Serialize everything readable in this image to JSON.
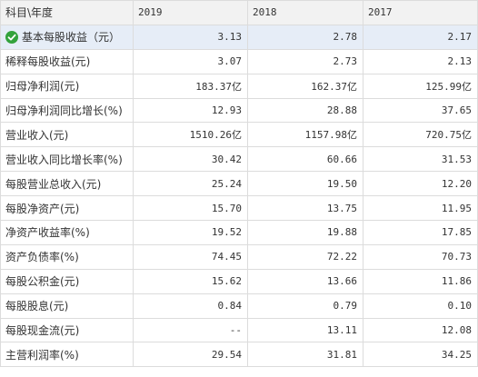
{
  "header": {
    "label": "科目\\年度",
    "years": [
      "2019",
      "2018",
      "2017"
    ]
  },
  "rows": [
    {
      "label": "基本每股收益（元）",
      "values": [
        "3.13",
        "2.78",
        "2.17"
      ],
      "selected": true,
      "icon": "check-circle-icon"
    },
    {
      "label": "稀释每股收益(元)",
      "values": [
        "3.07",
        "2.73",
        "2.13"
      ]
    },
    {
      "label": "归母净利润(元)",
      "values": [
        "183.37亿",
        "162.37亿",
        "125.99亿"
      ]
    },
    {
      "label": "归母净利润同比增长(%)",
      "values": [
        "12.93",
        "28.88",
        "37.65"
      ]
    },
    {
      "label": "营业收入(元)",
      "values": [
        "1510.26亿",
        "1157.98亿",
        "720.75亿"
      ]
    },
    {
      "label": "营业收入同比增长率(%)",
      "values": [
        "30.42",
        "60.66",
        "31.53"
      ]
    },
    {
      "label": "每股营业总收入(元)",
      "values": [
        "25.24",
        "19.50",
        "12.20"
      ]
    },
    {
      "label": "每股净资产(元)",
      "values": [
        "15.70",
        "13.75",
        "11.95"
      ]
    },
    {
      "label": "净资产收益率(%)",
      "values": [
        "19.52",
        "19.88",
        "17.85"
      ]
    },
    {
      "label": "资产负债率(%)",
      "values": [
        "74.45",
        "72.22",
        "70.73"
      ]
    },
    {
      "label": "每股公积金(元)",
      "values": [
        "15.62",
        "13.66",
        "11.86"
      ]
    },
    {
      "label": "每股股息(元)",
      "values": [
        "0.84",
        "0.79",
        "0.10"
      ]
    },
    {
      "label": "每股现金流(元)",
      "values": [
        "--",
        "13.11",
        "12.08"
      ]
    },
    {
      "label": "主营利润率(%)",
      "values": [
        "29.54",
        "31.81",
        "34.25"
      ]
    }
  ],
  "colors": {
    "header_bg": "#f2f2f2",
    "border": "#dcdcdc",
    "selected_row_bg": "#e6edf7",
    "check_icon": "#33a23c"
  }
}
